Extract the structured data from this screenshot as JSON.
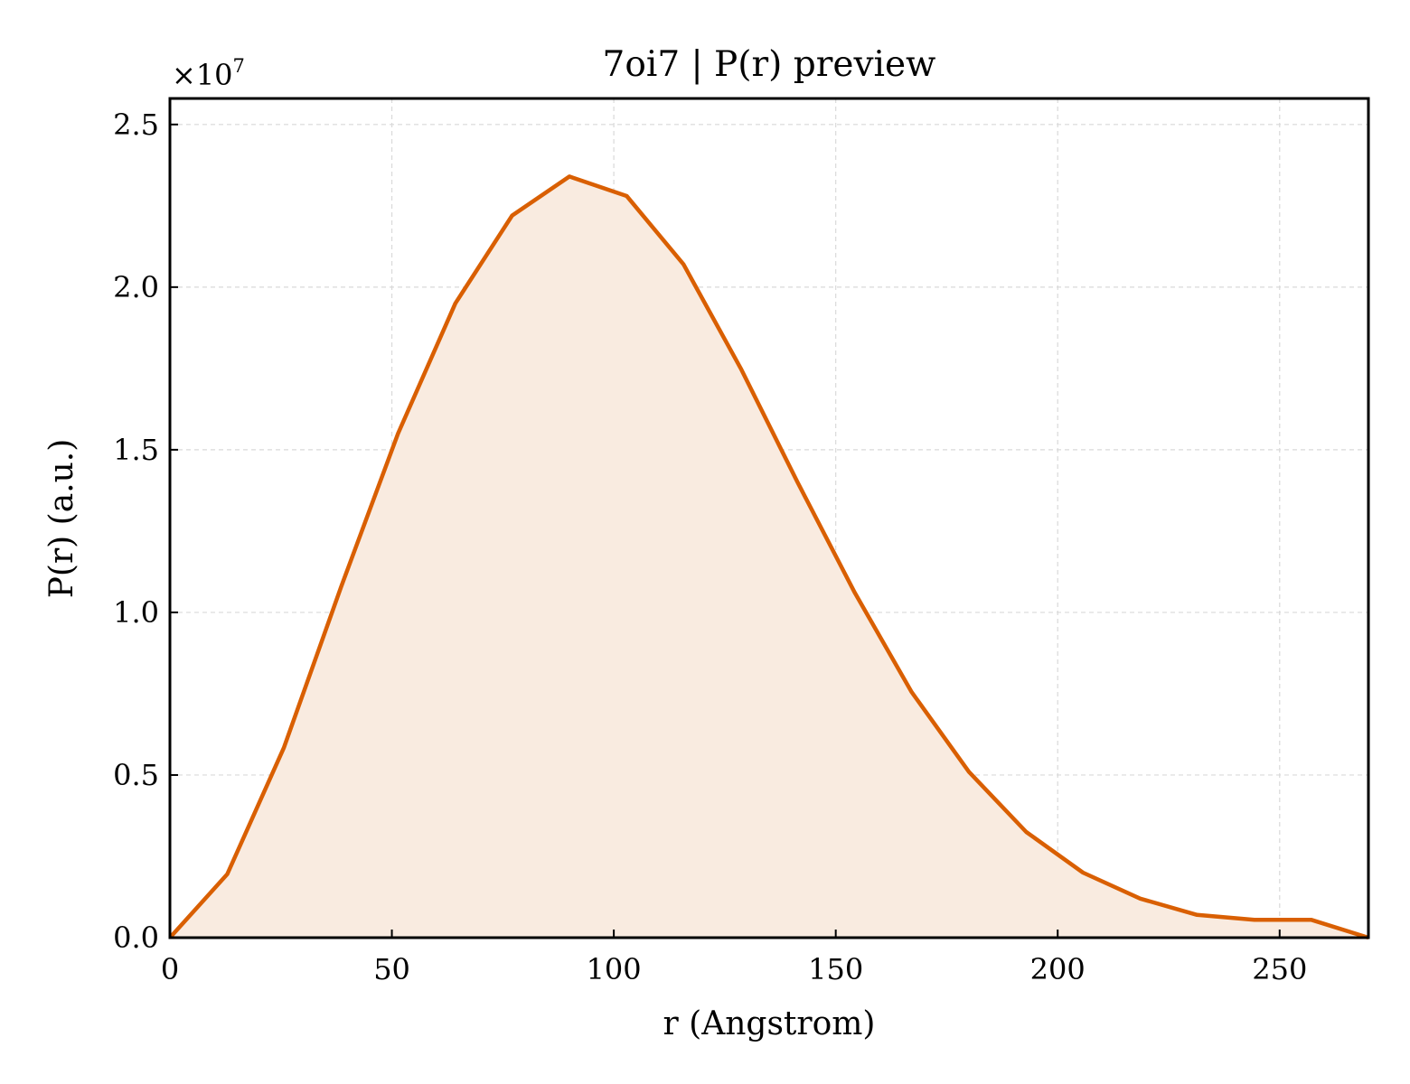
{
  "chart_data": {
    "type": "area",
    "title": "7oi7 | P(r) preview",
    "xlabel": "r (Angstrom)",
    "ylabel": "P(r) (a.u.)",
    "offset_text": "×10",
    "offset_exponent": "7",
    "xlim": [
      0,
      270
    ],
    "ylim": [
      0,
      2.58
    ],
    "x_ticks": [
      0,
      50,
      100,
      150,
      200,
      250
    ],
    "x_tick_labels": [
      "0",
      "50",
      "100",
      "150",
      "200",
      "250"
    ],
    "y_ticks": [
      0,
      0.5,
      1.0,
      1.5,
      2.0,
      2.5
    ],
    "y_tick_labels": [
      "0.0",
      "0.5",
      "1.0",
      "1.5",
      "2.0",
      "2.5"
    ],
    "grid": true,
    "line_color": "#d95f02",
    "fill_color": "#f9ebe0",
    "series": [
      {
        "x": [
          0,
          12.9,
          25.7,
          38.6,
          51.4,
          64.3,
          77.1,
          90.0,
          102.9,
          115.7,
          128.6,
          141.4,
          154.3,
          167.1,
          180.0,
          192.9,
          205.7,
          218.6,
          231.4,
          244.3,
          257.1,
          270.0
        ],
        "y": [
          0.0,
          0.195,
          0.585,
          1.08,
          1.55,
          1.95,
          2.22,
          2.34,
          2.28,
          2.07,
          1.75,
          1.4,
          1.06,
          0.755,
          0.51,
          0.325,
          0.2,
          0.12,
          0.07,
          0.055,
          0.055,
          0.0
        ]
      }
    ]
  }
}
